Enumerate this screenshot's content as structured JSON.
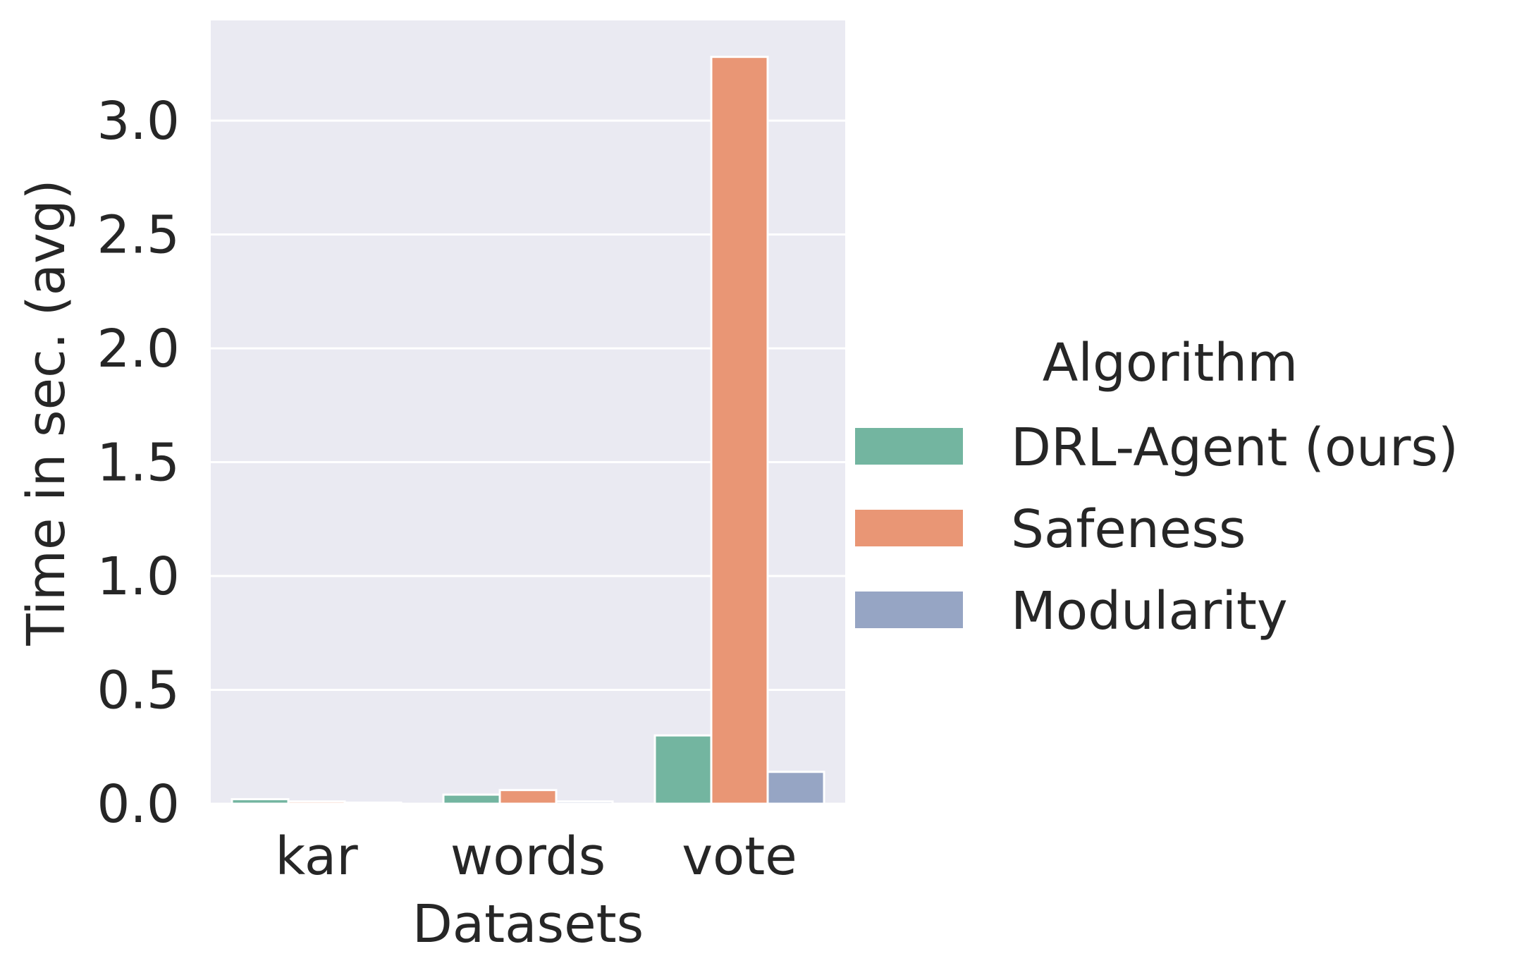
{
  "chart_data": {
    "type": "bar",
    "title": "",
    "xlabel": "Datasets",
    "ylabel": "Time in sec. (avg)",
    "categories": [
      "kar",
      "words",
      "vote"
    ],
    "series": [
      {
        "name": "DRL-Agent (ours)",
        "color": "#73b5a0",
        "values": [
          0.02,
          0.04,
          0.3
        ]
      },
      {
        "name": "Safeness",
        "color": "#e99675",
        "values": [
          0.01,
          0.06,
          3.28
        ]
      },
      {
        "name": "Modularity",
        "color": "#96a5c4",
        "values": [
          0.005,
          0.01,
          0.14
        ]
      }
    ],
    "ylim": [
      0,
      3.44
    ],
    "yticks": [
      "0.0",
      "0.5",
      "1.0",
      "1.5",
      "2.0",
      "2.5",
      "3.0"
    ],
    "ytick_values": [
      0,
      0.5,
      1.0,
      1.5,
      2.0,
      2.5,
      3.0
    ],
    "grid": true,
    "legend": {
      "title": "Algorithm",
      "placement": "right"
    },
    "colors": {
      "plot_background": "#eaeaf2",
      "grid": "#ffffff",
      "text": "#262626"
    }
  }
}
